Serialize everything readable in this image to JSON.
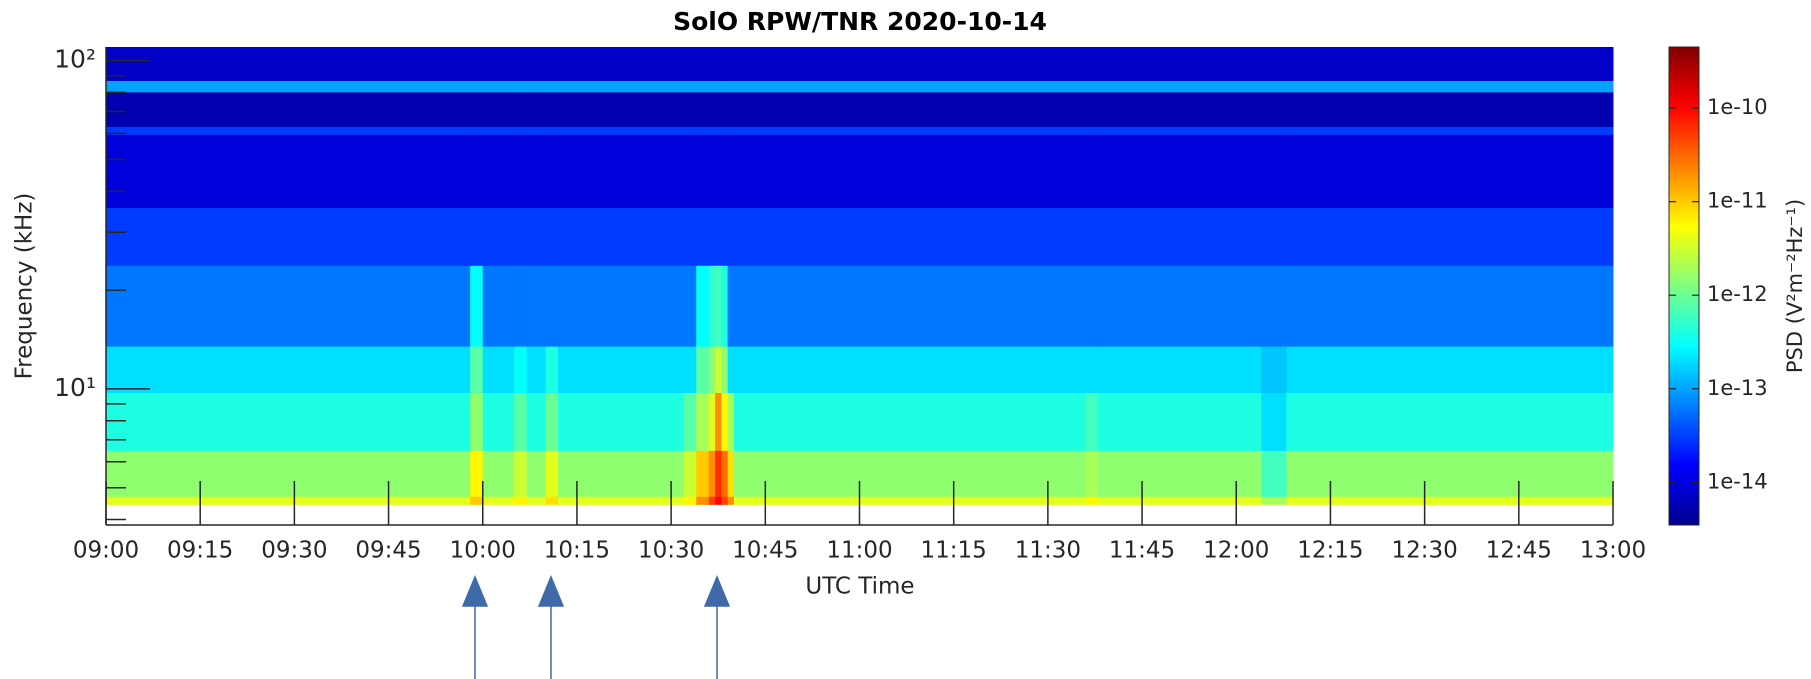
{
  "chart_data": {
    "type": "heatmap",
    "title": "SolO RPW/TNR 2020-10-14",
    "x_label": "UTC Time",
    "y_label": "Frequency (kHz)",
    "colorbar_label": "PSD (V²m⁻²Hz⁻¹)",
    "x_edges": [
      "09:00",
      "09:58",
      "10:00",
      "10:05",
      "10:07",
      "10:10",
      "10:12",
      "10:32",
      "10:34",
      "10:36",
      "10:37",
      "10:38",
      "10:39",
      "10:40",
      "11:36",
      "11:38",
      "12:04",
      "12:08",
      "13:00"
    ],
    "y_edges": [
      4.45,
      4.71,
      6.5,
      9.75,
      13.5,
      23.8,
      35.7,
      59.6,
      63,
      80.3,
      87,
      110
    ],
    "values": [
      [
        4e-12,
        1e-11,
        4e-12,
        6e-12,
        4e-12,
        8e-12,
        4e-12,
        6e-12,
        2e-11,
        5e-11,
        1e-10,
        5e-11,
        2e-11,
        4e-12,
        6e-12,
        4e-12,
        2e-12,
        4e-12
      ],
      [
        1.5e-12,
        6e-12,
        1.5e-12,
        3e-12,
        1.5e-12,
        4e-12,
        1.5e-12,
        3e-12,
        1e-11,
        2e-11,
        6e-11,
        3e-11,
        8e-12,
        1.5e-12,
        2e-12,
        1.5e-12,
        6e-13,
        1.5e-12
      ],
      [
        4e-13,
        1.5e-12,
        4e-13,
        8e-13,
        4e-13,
        1e-12,
        4e-13,
        8e-13,
        2e-12,
        4e-12,
        2e-11,
        6e-12,
        2e-12,
        4e-13,
        6e-13,
        4e-13,
        2e-13,
        4e-13
      ],
      [
        2e-13,
        8e-13,
        2e-13,
        3e-13,
        2e-13,
        4e-13,
        2e-13,
        2e-13,
        8e-13,
        1.5e-12,
        3e-12,
        1.5e-12,
        2e-13,
        2e-13,
        2e-13,
        2e-13,
        1.5e-13,
        2e-13
      ],
      [
        6e-14,
        3e-13,
        6e-14,
        6e-14,
        6e-14,
        6e-14,
        6e-14,
        6e-14,
        3e-13,
        5e-13,
        6e-13,
        4e-13,
        6e-14,
        6e-14,
        6e-14,
        6e-14,
        6e-14,
        6e-14
      ],
      [
        3e-14,
        3e-14,
        3e-14,
        3e-14,
        3e-14,
        3e-14,
        3e-14,
        3e-14,
        3e-14,
        3e-14,
        3e-14,
        3e-14,
        3e-14,
        3e-14,
        3e-14,
        3e-14,
        3e-14,
        3e-14
      ],
      [
        1e-14,
        1e-14,
        1e-14,
        1e-14,
        1e-14,
        1e-14,
        1e-14,
        1e-14,
        1e-14,
        1e-14,
        1e-14,
        1e-14,
        1e-14,
        1e-14,
        1e-14,
        1e-14,
        1e-14,
        1e-14
      ],
      [
        3e-14,
        3e-14,
        3e-14,
        3e-14,
        3e-14,
        3e-14,
        3e-14,
        3e-14,
        3e-14,
        3e-14,
        3e-14,
        3e-14,
        3e-14,
        3e-14,
        3e-14,
        3e-14,
        3e-14,
        3e-14
      ],
      [
        6e-15,
        6e-15,
        6e-15,
        6e-15,
        6e-15,
        6e-15,
        6e-15,
        6e-15,
        6e-15,
        6e-15,
        6e-15,
        6e-15,
        6e-15,
        6e-15,
        6e-15,
        6e-15,
        6e-15,
        6e-15
      ],
      [
        1e-13,
        1e-13,
        1e-13,
        1e-13,
        1e-13,
        1e-13,
        1e-13,
        1e-13,
        1e-13,
        1e-13,
        1e-13,
        1e-13,
        1e-13,
        1e-13,
        1e-13,
        1e-13,
        1e-13,
        1e-13
      ],
      [
        8e-15,
        8e-15,
        8e-15,
        8e-15,
        8e-15,
        8e-15,
        8e-15,
        8e-15,
        8e-15,
        8e-15,
        8e-15,
        8e-15,
        8e-15,
        8e-15,
        8e-15,
        8e-15,
        8e-15,
        8e-15
      ]
    ],
    "xlim": [
      "09:00",
      "13:00"
    ],
    "xticks": [
      "09:00",
      "09:15",
      "09:30",
      "09:45",
      "10:00",
      "10:15",
      "10:30",
      "10:45",
      "11:00",
      "11:15",
      "11:30",
      "11:45",
      "12:00",
      "12:15",
      "12:30",
      "12:45",
      "13:00"
    ],
    "ylim": [
      3.85,
      110
    ],
    "yscale": "log",
    "yticks": [
      {
        "value": 10,
        "label": "10¹"
      },
      {
        "value": 100,
        "label": "10²"
      }
    ],
    "yminorticks": [
      4,
      5,
      6,
      7,
      8,
      9,
      20,
      30,
      40,
      50,
      60,
      70,
      80,
      90
    ],
    "colormap": "jet",
    "clim": [
      3.5e-15,
      4.5e-10
    ],
    "cscale": "log",
    "cticks": [
      1e-10,
      1e-11,
      1e-12,
      1e-13,
      1e-14
    ]
  }
}
